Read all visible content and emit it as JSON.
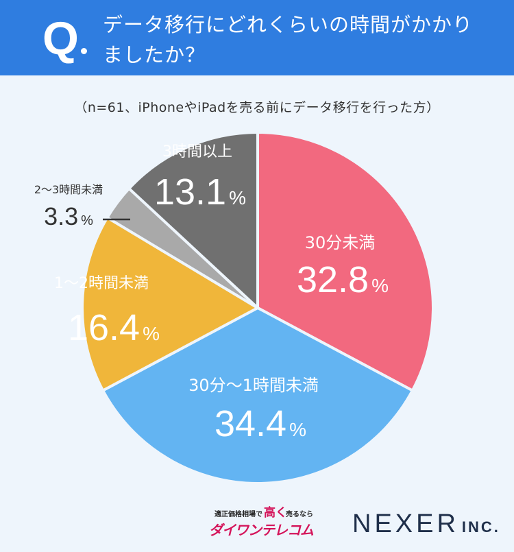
{
  "header": {
    "q_mark": "Q",
    "question_line1": "データ移行にどれくらいの時間がかかり",
    "question_line2": "ましたか？"
  },
  "note": "（n=61、iPhoneやiPadを売る前にデータ移行を行った方）",
  "colors": {
    "header": "#2f7de0",
    "background": "#eef5fc",
    "pink": "#f2697f",
    "blue": "#63b4f2",
    "yellow": "#f0b63a",
    "gray_light": "#a9a9a9",
    "gray_dark": "#707070"
  },
  "chart_data": {
    "type": "pie",
    "n": 61,
    "slices": [
      {
        "label": "30分未満",
        "value": 32.8,
        "value_text": "32.8",
        "unit": "%",
        "color": "#f2697f"
      },
      {
        "label": "30分～1時間未満",
        "value": 34.4,
        "value_text": "34.4",
        "unit": "%",
        "color": "#63b4f2"
      },
      {
        "label": "1～2時間未満",
        "value": 16.4,
        "value_text": "16.4",
        "unit": "%",
        "color": "#f0b63a"
      },
      {
        "label": "2～3時間未満",
        "value": 3.3,
        "value_text": "3.3",
        "unit": "%",
        "color": "#a9a9a9"
      },
      {
        "label": "3時間以上",
        "value": 13.1,
        "value_text": "13.1",
        "unit": "%",
        "color": "#707070"
      }
    ]
  },
  "footer": {
    "shop_small": "適正価格相場で",
    "shop_big": "高く",
    "shop_sell": "売るなら",
    "shop_brand": "ダイワンテレコム",
    "company": "NEXER",
    "company_suffix": "INC."
  }
}
